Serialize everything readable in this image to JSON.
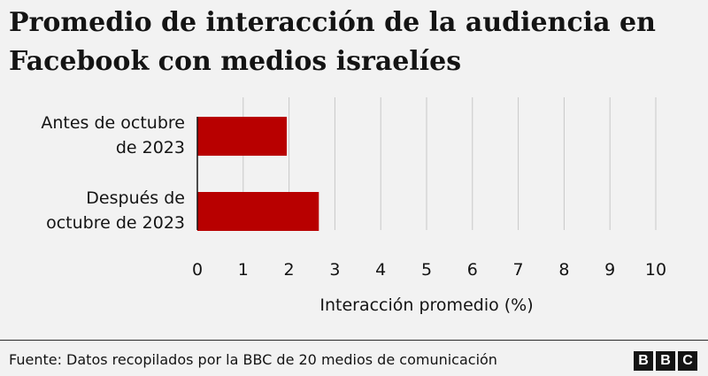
{
  "header": {
    "title": "Promedio de interacción de la audiencia en Facebook con medios israelíes"
  },
  "chart_data": {
    "type": "bar",
    "orientation": "horizontal",
    "categories": [
      [
        "Antes de octubre",
        "de 2023"
      ],
      [
        "Después de",
        "octubre de 2023"
      ]
    ],
    "values": [
      1.95,
      2.65
    ],
    "xlabel": "Interacción promedio (%)",
    "xlim": [
      0,
      10
    ],
    "xticks": [
      0,
      1,
      2,
      3,
      4,
      5,
      6,
      7,
      8,
      9,
      10
    ],
    "grid": true,
    "bar_color": "#b80000"
  },
  "footer": {
    "source": "Fuente: Datos recopilados por la BBC de 20 medios de comunicación",
    "logo_letters": [
      "B",
      "B",
      "C"
    ]
  }
}
